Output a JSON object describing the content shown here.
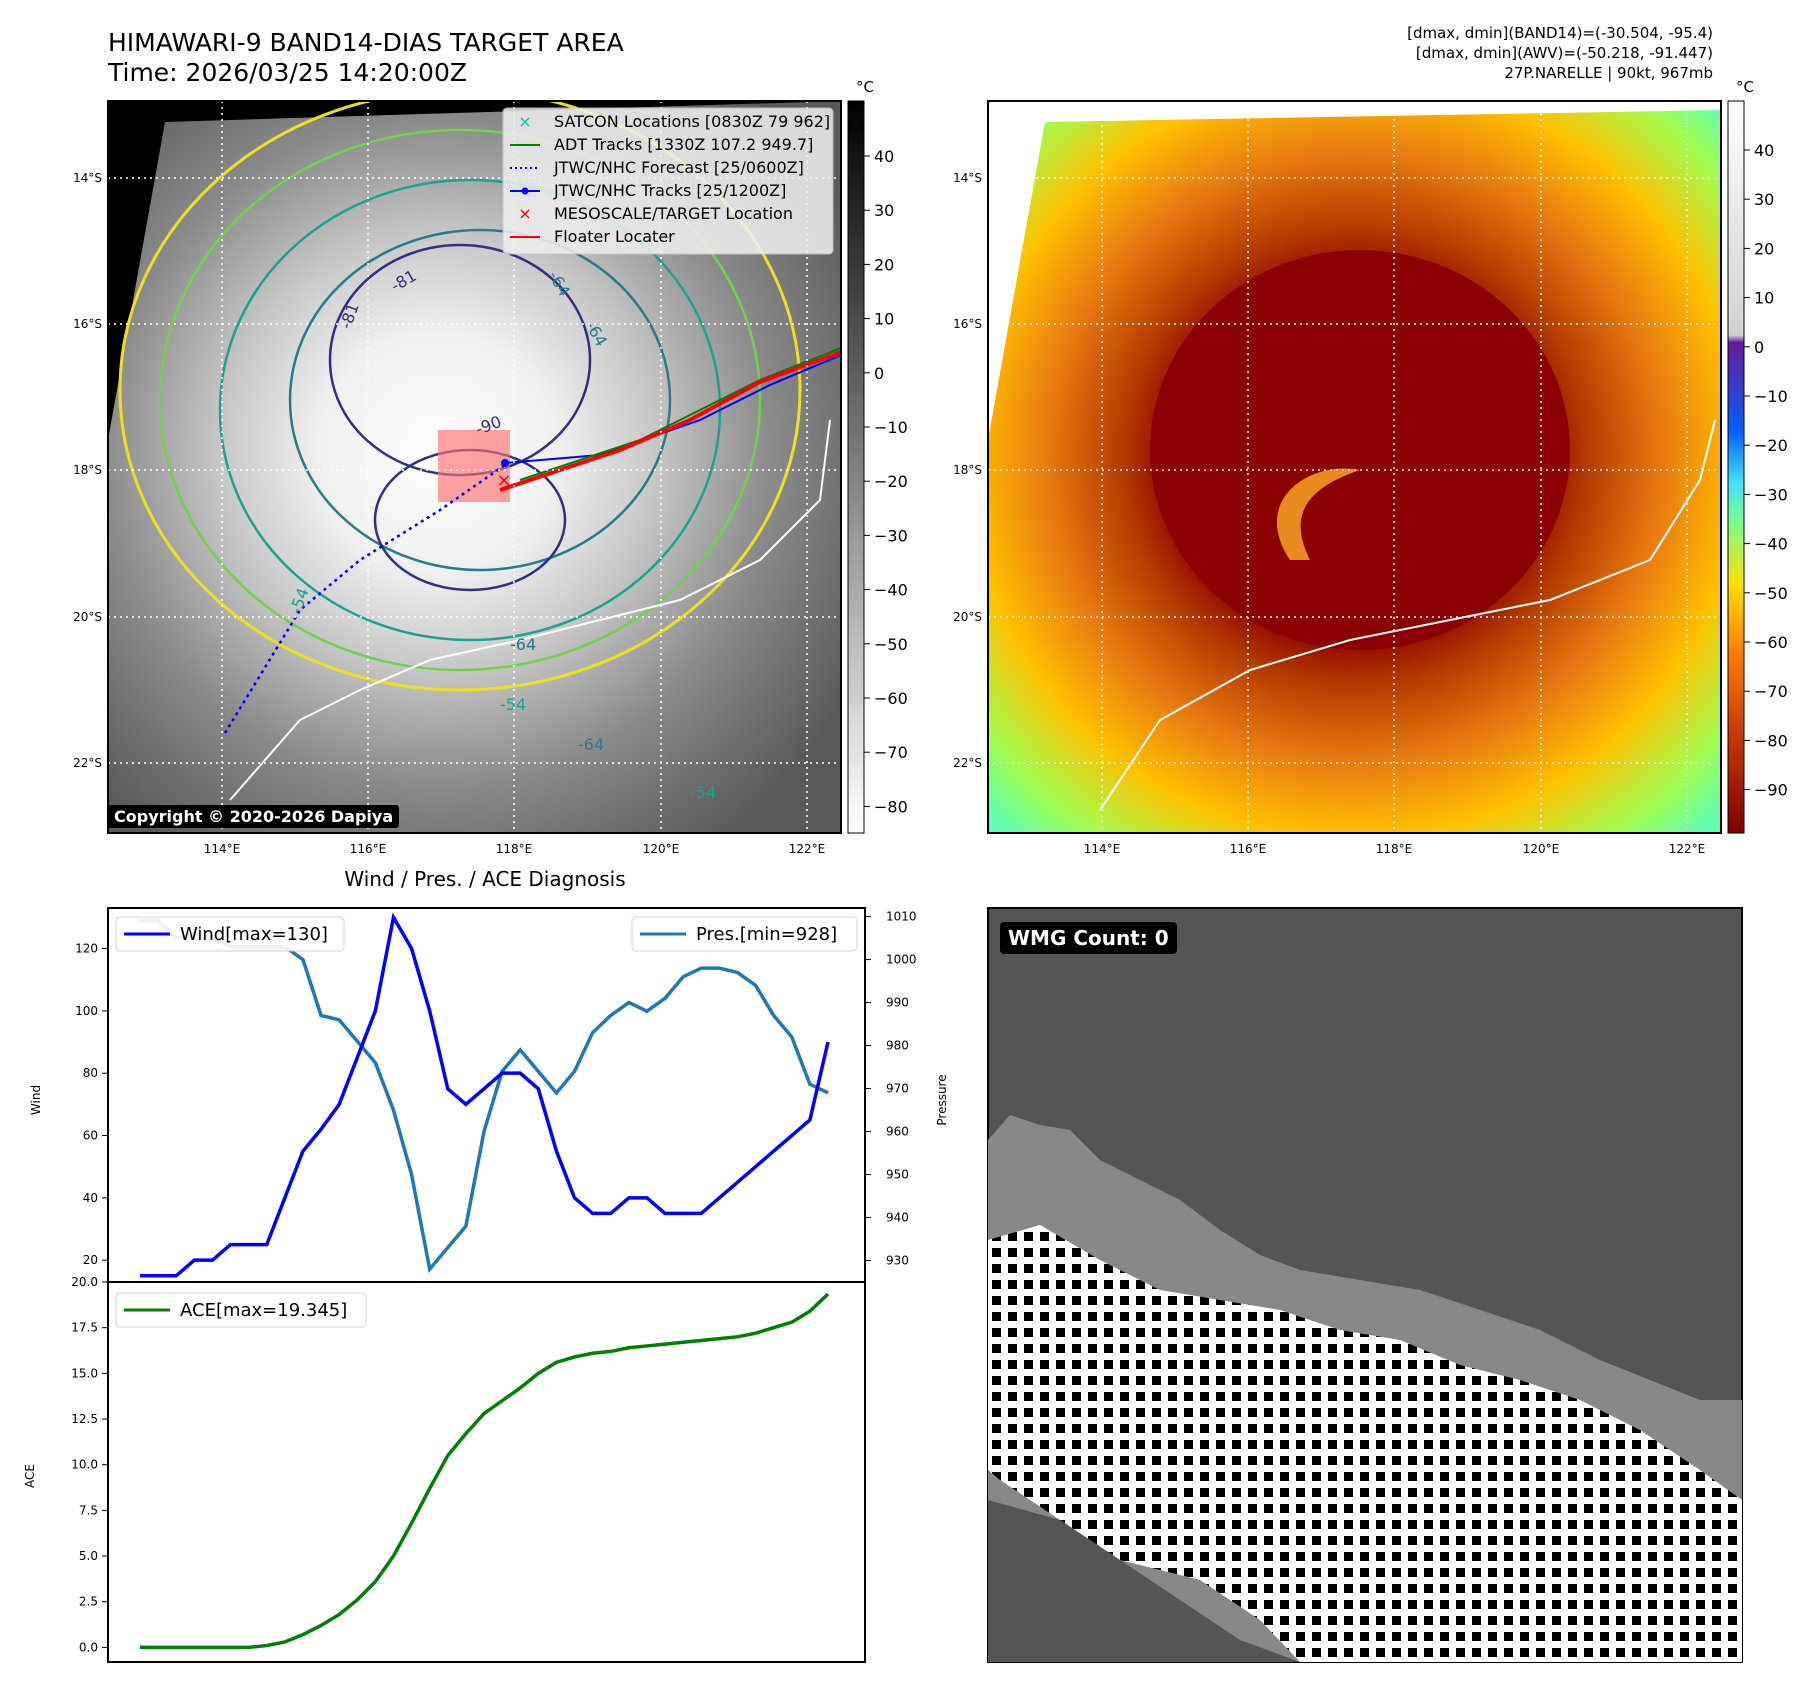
{
  "header": {
    "title_line1": "HIMAWARI-9 BAND14-DIAS TARGET AREA",
    "title_line2": "Time: 2026/03/25 14:20:00Z",
    "info_line1": "[dmax, dmin](BAND14)=(-30.504, -95.4)",
    "info_line2": "[dmax, dmin](AWV)=(-50.218, -91.447)",
    "info_line3": "27P.NARELLE | 90kt, 967mb"
  },
  "map": {
    "lat_labels": [
      "14°S",
      "16°S",
      "18°S",
      "20°S",
      "22°S"
    ],
    "lon_labels": [
      "114°E",
      "116°E",
      "118°E",
      "120°E",
      "122°E"
    ],
    "copyright": "Copyright © 2020-2026 Dapiya",
    "contour_labels": [
      "-81",
      "-81",
      "-90",
      "-64",
      "-64",
      "-54",
      "-64",
      "-54",
      "-64",
      "-54"
    ],
    "legend": [
      {
        "label": "SATCON Locations [0830Z 79 962]",
        "color": "#00c0c0",
        "marker": "x"
      },
      {
        "label": "ADT Tracks [1330Z 107.2 949.7]",
        "color": "#008000",
        "marker": "line"
      },
      {
        "label": "JTWC/NHC Forecast [25/0600Z]",
        "color": "#0000ff",
        "marker": "dotted"
      },
      {
        "label": "JTWC/NHC Tracks [25/1200Z]",
        "color": "#0000ff",
        "marker": "line-dot"
      },
      {
        "label": "MESOSCALE/TARGET Location",
        "color": "#ff0000",
        "marker": "x"
      },
      {
        "label": "Floater Locater",
        "color": "#ff0000",
        "marker": "line"
      }
    ]
  },
  "colorbar_left": {
    "unit": "°C",
    "ticks": [
      "40",
      "30",
      "20",
      "10",
      "0",
      "−10",
      "−20",
      "−30",
      "−40",
      "−50",
      "−60",
      "−70",
      "−80"
    ]
  },
  "colorbar_right": {
    "unit": "°C",
    "ticks": [
      "40",
      "30",
      "20",
      "10",
      "0",
      "−10",
      "−20",
      "−30",
      "−40",
      "−50",
      "−60",
      "−70",
      "−80",
      "−90"
    ]
  },
  "wmg": {
    "label": "WMG Count: 0"
  },
  "chart_data": [
    {
      "type": "line",
      "title": "Wind / Pres. / ACE Diagnosis",
      "ylabel": "Wind",
      "y2label": "Pressure",
      "ylim": [
        13,
        133
      ],
      "y2lim": [
        925,
        1012
      ],
      "yticks": [
        20,
        40,
        60,
        80,
        100,
        120
      ],
      "y2ticks": [
        930,
        940,
        950,
        960,
        970,
        980,
        990,
        1000,
        1010
      ],
      "x": [
        0,
        1,
        2,
        3,
        4,
        5,
        6,
        7,
        8,
        9,
        10,
        11,
        12,
        13,
        14,
        15,
        16,
        17,
        18,
        19,
        20,
        21,
        22,
        23,
        24,
        25,
        26,
        27,
        28,
        29,
        30,
        31,
        32,
        33,
        34,
        35,
        36,
        37,
        38
      ],
      "series": [
        {
          "name": "Wind[max=130]",
          "color": "#0000ff",
          "values": [
            15,
            15,
            15,
            20,
            20,
            25,
            25,
            25,
            40,
            55,
            62,
            70,
            85,
            100,
            130,
            120,
            100,
            75,
            70,
            75,
            80,
            80,
            75,
            55,
            40,
            35,
            35,
            40,
            40,
            35,
            35,
            35,
            40,
            45,
            50,
            55,
            60,
            65,
            90
          ]
        },
        {
          "name": "Pres.[min=928]",
          "color": "#1f77b4",
          "values": [
            1009,
            1009,
            1005,
            1006,
            1005,
            1003,
            1003,
            1003,
            1003,
            1000,
            987,
            986,
            981,
            976,
            965,
            950,
            928,
            933,
            938,
            960,
            974,
            979,
            974,
            969,
            974,
            983,
            987,
            990,
            988,
            991,
            996,
            998,
            998,
            997,
            994,
            987,
            982,
            971,
            969
          ]
        }
      ]
    },
    {
      "type": "line",
      "ylabel": "ACE",
      "ylim": [
        -0.8,
        20.0
      ],
      "yticks": [
        0.0,
        2.5,
        5.0,
        7.5,
        10.0,
        12.5,
        15.0,
        17.5,
        20.0
      ],
      "ytick_labels": [
        "0.0",
        "2.5",
        "5.0",
        "7.5",
        "10.0",
        "12.5",
        "15.0",
        "17.5",
        "20.0"
      ],
      "x": [
        0,
        1,
        2,
        3,
        4,
        5,
        6,
        7,
        8,
        9,
        10,
        11,
        12,
        13,
        14,
        15,
        16,
        17,
        18,
        19,
        20,
        21,
        22,
        23,
        24,
        25,
        26,
        27,
        28,
        29,
        30,
        31,
        32,
        33,
        34,
        35,
        36,
        37,
        38
      ],
      "series": [
        {
          "name": "ACE[max=19.345]",
          "color": "#008000",
          "values": [
            0,
            0,
            0,
            0,
            0,
            0,
            0,
            0.1,
            0.3,
            0.7,
            1.2,
            1.8,
            2.6,
            3.6,
            5.0,
            6.8,
            8.7,
            10.5,
            11.7,
            12.8,
            13.5,
            14.2,
            15.0,
            15.6,
            15.9,
            16.1,
            16.2,
            16.4,
            16.5,
            16.6,
            16.7,
            16.8,
            16.9,
            17.0,
            17.2,
            17.5,
            17.8,
            18.4,
            19.345
          ]
        }
      ]
    }
  ]
}
